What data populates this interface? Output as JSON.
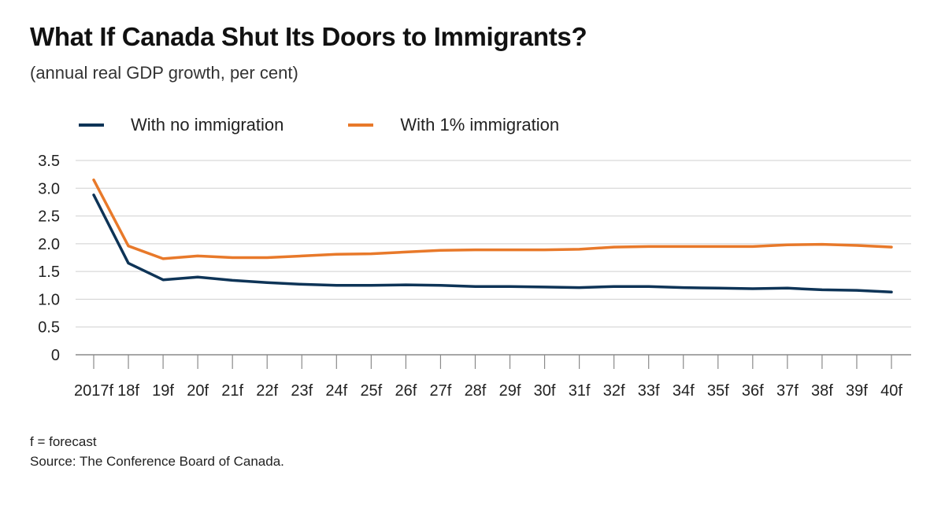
{
  "title": "What If Canada Shut Its Doors to Immigrants?",
  "subtitle": "(annual real GDP growth, per cent)",
  "footnote": "f = forecast",
  "source": "Source: The Conference Board of Canada.",
  "chart_data": {
    "type": "line",
    "title": "What If Canada Shut Its Doors to Immigrants?",
    "subtitle": "(annual real GDP growth, per cent)",
    "xlabel": "",
    "ylabel": "",
    "categories": [
      "2017f",
      "18f",
      "19f",
      "20f",
      "21f",
      "22f",
      "23f",
      "24f",
      "25f",
      "26f",
      "27f",
      "28f",
      "29f",
      "30f",
      "31f",
      "32f",
      "33f",
      "34f",
      "35f",
      "36f",
      "37f",
      "38f",
      "39f",
      "40f"
    ],
    "yticks": [
      "0",
      "0.5",
      "1.0",
      "1.5",
      "2.0",
      "2.5",
      "3.0",
      "3.5"
    ],
    "ylim": [
      0,
      3.5
    ],
    "grid": true,
    "legend": "top-left",
    "series": [
      {
        "name": "With no immigration",
        "color": "#0e3457",
        "values": [
          2.88,
          1.65,
          1.35,
          1.4,
          1.34,
          1.3,
          1.27,
          1.25,
          1.25,
          1.26,
          1.25,
          1.23,
          1.23,
          1.22,
          1.21,
          1.23,
          1.23,
          1.21,
          1.2,
          1.19,
          1.2,
          1.17,
          1.16,
          1.13
        ]
      },
      {
        "name": "With 1% immigration",
        "color": "#e8792a",
        "values": [
          3.15,
          1.96,
          1.73,
          1.78,
          1.75,
          1.75,
          1.78,
          1.81,
          1.82,
          1.85,
          1.88,
          1.89,
          1.89,
          1.89,
          1.9,
          1.94,
          1.95,
          1.95,
          1.95,
          1.95,
          1.98,
          1.99,
          1.97,
          1.94
        ]
      }
    ]
  }
}
